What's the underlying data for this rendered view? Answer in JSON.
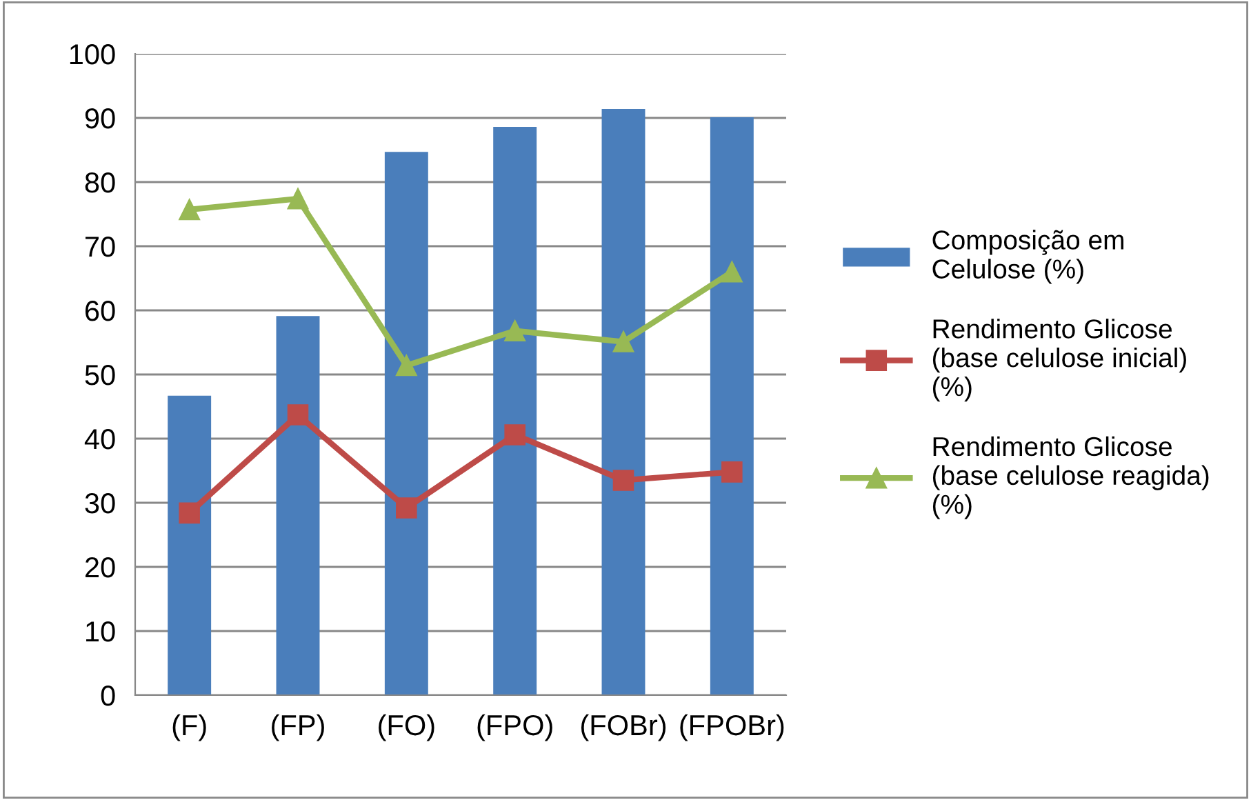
{
  "chart_data": {
    "type": "bar",
    "categories": [
      "(F)",
      "(FP)",
      "(FO)",
      "(FPO)",
      "(FOBr)",
      "(FPOBr)"
    ],
    "series": [
      {
        "name": "Composição em\nCelulose (%)",
        "color": "#4a7ebb",
        "values": [
          46.7,
          59.1,
          84.7,
          88.6,
          91.4,
          90.1
        ]
      },
      {
        "name": "Rendimento Glicose\n(base celulose inicial)\n(%)",
        "type": "line",
        "marker": "square",
        "color": "#be4b48",
        "values": [
          28.4,
          43.7,
          29.2,
          40.6,
          33.5,
          34.8
        ]
      },
      {
        "name": "Rendimento Glicose\n(base celulose reagida)\n(%)",
        "type": "line",
        "marker": "triangle",
        "color": "#98b954",
        "values": [
          75.7,
          77.4,
          51.4,
          56.8,
          55.1,
          66.0
        ]
      }
    ],
    "ylim": [
      0,
      100
    ],
    "yticks": [
      0,
      10,
      20,
      30,
      40,
      50,
      60,
      70,
      80,
      90,
      100
    ],
    "grid": "y",
    "legend": "right",
    "line_style": "solid"
  }
}
